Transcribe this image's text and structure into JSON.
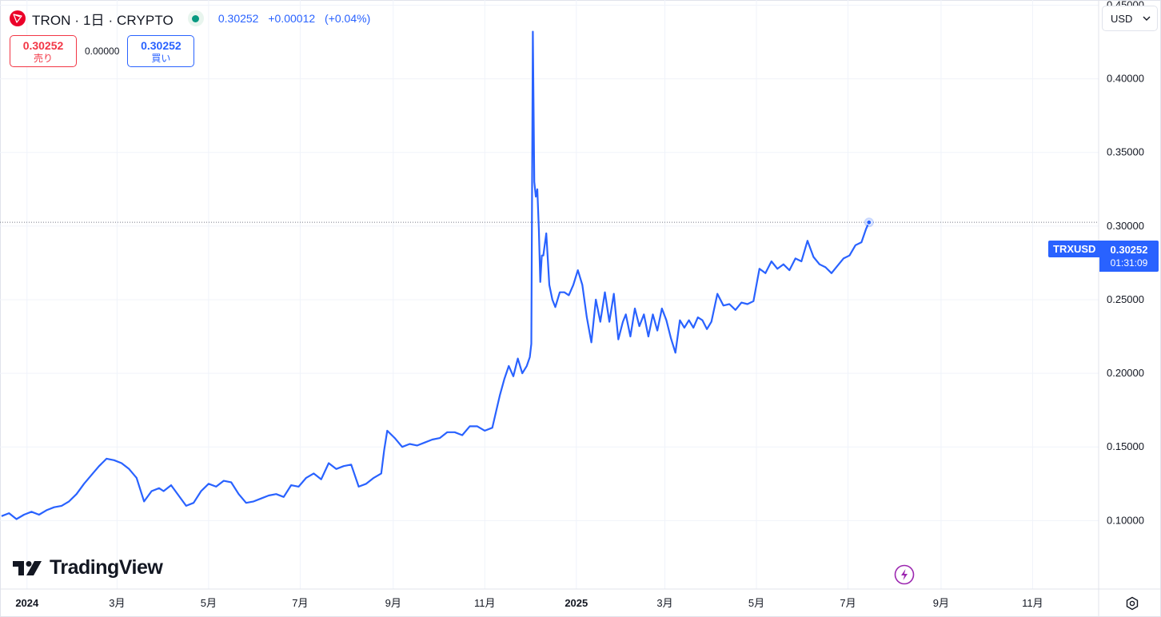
{
  "header": {
    "title": "TRON · 1日 · CRYPTO",
    "last_price": "0.30252",
    "change": "+0.00012",
    "change_pct": "(+0.04%)"
  },
  "trade": {
    "sell_price": "0.30252",
    "sell_label": "売り",
    "spread": "0.00000",
    "buy_price": "0.30252",
    "buy_label": "買い"
  },
  "currency": {
    "selected": "USD"
  },
  "branding": {
    "name": "TradingView"
  },
  "price_tag": {
    "symbol": "TRXUSD",
    "price": "0.30252",
    "countdown": "01:31:09"
  },
  "colors": {
    "line": "#2962ff",
    "sell": "#f23645",
    "buy": "#2962ff",
    "status": "#089981"
  },
  "icons": {
    "logo": "tron-logo-icon",
    "status": "market-open-dot-icon",
    "bolt": "lightning-icon",
    "settings": "gear-icon"
  },
  "chart_data": {
    "type": "line",
    "title": "",
    "xlabel": "",
    "ylabel": "",
    "ylim": [
      0.07,
      0.455
    ],
    "xlim": [
      "2024-01-01",
      "2025-12-01"
    ],
    "grid": true,
    "y_ticks": [
      "0.10000",
      "0.15000",
      "0.20000",
      "0.25000",
      "0.30000",
      "0.35000",
      "0.40000",
      "0.45000"
    ],
    "x_ticks": [
      {
        "date": "2024-01-01",
        "label": "2024",
        "bold": true
      },
      {
        "date": "2024-03-01",
        "label": "3月"
      },
      {
        "date": "2024-05-01",
        "label": "5月"
      },
      {
        "date": "2024-07-01",
        "label": "7月"
      },
      {
        "date": "2024-09-01",
        "label": "9月"
      },
      {
        "date": "2024-11-01",
        "label": "11月"
      },
      {
        "date": "2025-01-01",
        "label": "2025",
        "bold": true
      },
      {
        "date": "2025-03-01",
        "label": "3月"
      },
      {
        "date": "2025-05-01",
        "label": "5月"
      },
      {
        "date": "2025-07-01",
        "label": "7月"
      },
      {
        "date": "2025-09-01",
        "label": "9月"
      },
      {
        "date": "2025-11-01",
        "label": "11月"
      }
    ],
    "current_price": 0.30252,
    "series": [
      {
        "name": "",
        "x": [
          "2023-12-15",
          "2023-12-20",
          "2023-12-25",
          "2023-12-30",
          "2024-01-04",
          "2024-01-09",
          "2024-01-14",
          "2024-01-19",
          "2024-01-24",
          "2024-01-29",
          "2024-02-03",
          "2024-02-08",
          "2024-02-13",
          "2024-02-18",
          "2024-02-23",
          "2024-02-28",
          "2024-03-04",
          "2024-03-09",
          "2024-03-14",
          "2024-03-19",
          "2024-03-24",
          "2024-03-29",
          "2024-04-01",
          "2024-04-06",
          "2024-04-11",
          "2024-04-16",
          "2024-04-21",
          "2024-04-26",
          "2024-05-01",
          "2024-05-06",
          "2024-05-11",
          "2024-05-16",
          "2024-05-21",
          "2024-05-26",
          "2024-05-31",
          "2024-06-05",
          "2024-06-10",
          "2024-06-15",
          "2024-06-20",
          "2024-06-25",
          "2024-06-30",
          "2024-07-05",
          "2024-07-10",
          "2024-07-15",
          "2024-07-20",
          "2024-07-25",
          "2024-07-30",
          "2024-08-04",
          "2024-08-09",
          "2024-08-14",
          "2024-08-19",
          "2024-08-24",
          "2024-08-26",
          "2024-08-28",
          "2024-09-02",
          "2024-09-07",
          "2024-09-12",
          "2024-09-17",
          "2024-09-22",
          "2024-09-27",
          "2024-10-02",
          "2024-10-07",
          "2024-10-12",
          "2024-10-17",
          "2024-10-22",
          "2024-10-27",
          "2024-11-01",
          "2024-11-06",
          "2024-11-11",
          "2024-11-14",
          "2024-11-17",
          "2024-11-20",
          "2024-11-23",
          "2024-11-26",
          "2024-11-29",
          "2024-12-01",
          "2024-12-02",
          "2024-12-03",
          "2024-12-04",
          "2024-12-05",
          "2024-12-06",
          "2024-12-07",
          "2024-12-08",
          "2024-12-09",
          "2024-12-10",
          "2024-12-12",
          "2024-12-14",
          "2024-12-16",
          "2024-12-18",
          "2024-12-21",
          "2024-12-24",
          "2024-12-27",
          "2024-12-30",
          "2025-01-02",
          "2025-01-05",
          "2025-01-08",
          "2025-01-11",
          "2025-01-14",
          "2025-01-17",
          "2025-01-20",
          "2025-01-23",
          "2025-01-26",
          "2025-01-29",
          "2025-02-01",
          "2025-02-03",
          "2025-02-06",
          "2025-02-09",
          "2025-02-12",
          "2025-02-15",
          "2025-02-18",
          "2025-02-21",
          "2025-02-24",
          "2025-02-27",
          "2025-03-02",
          "2025-03-05",
          "2025-03-08",
          "2025-03-11",
          "2025-03-14",
          "2025-03-17",
          "2025-03-20",
          "2025-03-23",
          "2025-03-26",
          "2025-03-29",
          "2025-04-01",
          "2025-04-05",
          "2025-04-09",
          "2025-04-13",
          "2025-04-17",
          "2025-04-21",
          "2025-04-25",
          "2025-04-29",
          "2025-05-03",
          "2025-05-07",
          "2025-05-11",
          "2025-05-15",
          "2025-05-19",
          "2025-05-23",
          "2025-05-27",
          "2025-05-31",
          "2025-06-04",
          "2025-06-08",
          "2025-06-12",
          "2025-06-16",
          "2025-06-20",
          "2025-06-24",
          "2025-06-28",
          "2025-07-02",
          "2025-07-06",
          "2025-07-10",
          "2025-07-13",
          "2025-07-15"
        ],
        "y": [
          0.103,
          0.105,
          0.101,
          0.104,
          0.106,
          0.104,
          0.107,
          0.109,
          0.11,
          0.113,
          0.118,
          0.125,
          0.131,
          0.137,
          0.142,
          0.141,
          0.139,
          0.135,
          0.129,
          0.113,
          0.12,
          0.122,
          0.12,
          0.124,
          0.117,
          0.11,
          0.112,
          0.12,
          0.125,
          0.123,
          0.127,
          0.126,
          0.118,
          0.112,
          0.113,
          0.115,
          0.117,
          0.118,
          0.116,
          0.124,
          0.123,
          0.129,
          0.132,
          0.128,
          0.139,
          0.135,
          0.137,
          0.138,
          0.123,
          0.125,
          0.129,
          0.132,
          0.148,
          0.161,
          0.156,
          0.15,
          0.152,
          0.151,
          0.153,
          0.155,
          0.156,
          0.16,
          0.16,
          0.158,
          0.164,
          0.164,
          0.161,
          0.163,
          0.185,
          0.196,
          0.205,
          0.198,
          0.21,
          0.2,
          0.205,
          0.211,
          0.22,
          0.432,
          0.33,
          0.32,
          0.325,
          0.298,
          0.262,
          0.28,
          0.28,
          0.295,
          0.26,
          0.25,
          0.245,
          0.255,
          0.255,
          0.253,
          0.26,
          0.27,
          0.26,
          0.238,
          0.221,
          0.25,
          0.235,
          0.255,
          0.235,
          0.254,
          0.223,
          0.235,
          0.24,
          0.225,
          0.244,
          0.232,
          0.24,
          0.225,
          0.24,
          0.229,
          0.244,
          0.236,
          0.224,
          0.214,
          0.236,
          0.231,
          0.236,
          0.231,
          0.238,
          0.236,
          0.23,
          0.235,
          0.254,
          0.246,
          0.247,
          0.243,
          0.248,
          0.247,
          0.249,
          0.271,
          0.268,
          0.276,
          0.271,
          0.274,
          0.27,
          0.278,
          0.276,
          0.29,
          0.279,
          0.274,
          0.272,
          0.268,
          0.273,
          0.278,
          0.28,
          0.287,
          0.289,
          0.298,
          0.3025
        ]
      }
    ]
  }
}
